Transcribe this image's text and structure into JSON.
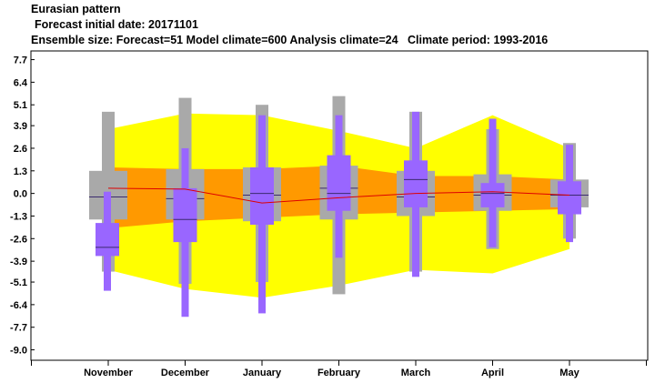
{
  "header": {
    "title": "Eurasian pattern",
    "forecast_date": "Forecast initial date: 20171101",
    "ensemble_info": "Ensemble size: Forecast=51 Model climate=600 Analysis climate=24   Climate period: 1993-2016"
  },
  "colors": {
    "outer_band": "#ffff00",
    "inner_band": "#ff9900",
    "climate_box": "#a9a9a9",
    "forecast_box": "#9966ff",
    "median_line": "#3b2a6e",
    "mean_line": "#dd0000"
  },
  "chart_data": {
    "type": "box",
    "categories": [
      "November",
      "December",
      "January",
      "February",
      "March",
      "April",
      "May"
    ],
    "y_ticks": [
      "7.7",
      "6.4",
      "5.1",
      "3.9",
      "2.6",
      "1.3",
      "0.0",
      "-1.3",
      "-2.6",
      "-3.9",
      "-5.1",
      "-6.4",
      "-7.7",
      "-9.0"
    ],
    "ylim": [
      -9.6,
      8.2
    ],
    "grid": false,
    "outer_band": {
      "upper": [
        3.7,
        4.6,
        4.5,
        3.6,
        2.6,
        4.5,
        2.6
      ],
      "lower": [
        -4.4,
        -5.5,
        -6.0,
        -5.3,
        -4.4,
        -4.6,
        -3.2
      ]
    },
    "inner_band": {
      "upper": [
        1.5,
        1.4,
        1.4,
        1.6,
        1.0,
        1.0,
        0.8
      ],
      "lower": [
        -2.0,
        -1.6,
        -1.4,
        -1.2,
        -1.1,
        -1.0,
        -0.9
      ]
    },
    "ensemble_mean": [
      0.3,
      0.25,
      -0.55,
      -0.25,
      0.0,
      0.1,
      -0.1
    ],
    "climate": [
      {
        "whisker_low": -4.5,
        "box_low": -1.5,
        "median": -0.2,
        "box_high": 1.3,
        "whisker_high": 4.7
      },
      {
        "whisker_low": -5.2,
        "box_low": -1.5,
        "median": -0.3,
        "box_high": 1.4,
        "whisker_high": 5.5
      },
      {
        "whisker_low": -5.1,
        "box_low": -1.6,
        "median": -0.1,
        "box_high": 1.5,
        "whisker_high": 5.1
      },
      {
        "whisker_low": -5.8,
        "box_low": -1.5,
        "median": 0.3,
        "box_high": 1.6,
        "whisker_high": 5.6
      },
      {
        "whisker_low": -4.5,
        "box_low": -1.3,
        "median": -0.2,
        "box_high": 1.3,
        "whisker_high": 4.7
      },
      {
        "whisker_low": -3.2,
        "box_low": -1.0,
        "median": -0.1,
        "box_high": 1.1,
        "whisker_high": 3.7
      },
      {
        "whisker_low": -2.6,
        "box_low": -0.8,
        "median": -0.1,
        "box_high": 0.8,
        "whisker_high": 2.9
      }
    ],
    "forecast": [
      {
        "whisker_low": -5.6,
        "box_low": -3.6,
        "median": -3.1,
        "box_high": -1.7,
        "whisker_high": 0.1
      },
      {
        "whisker_low": -7.1,
        "box_low": -2.8,
        "median": -1.5,
        "box_high": 0.3,
        "whisker_high": 2.6
      },
      {
        "whisker_low": -6.9,
        "box_low": -1.8,
        "median": 0.0,
        "box_high": 1.5,
        "whisker_high": 4.5
      },
      {
        "whisker_low": -3.7,
        "box_low": -1.0,
        "median": 0.0,
        "box_high": 2.2,
        "whisker_high": 4.5
      },
      {
        "whisker_low": -4.8,
        "box_low": -0.8,
        "median": 0.8,
        "box_high": 1.9,
        "whisker_high": 4.7
      },
      {
        "whisker_low": -3.1,
        "box_low": -0.8,
        "median": 0.0,
        "box_high": 0.6,
        "whisker_high": 4.3
      },
      {
        "whisker_low": -2.8,
        "box_low": -1.2,
        "median": -0.1,
        "box_high": 0.7,
        "whisker_high": 2.8
      }
    ]
  }
}
